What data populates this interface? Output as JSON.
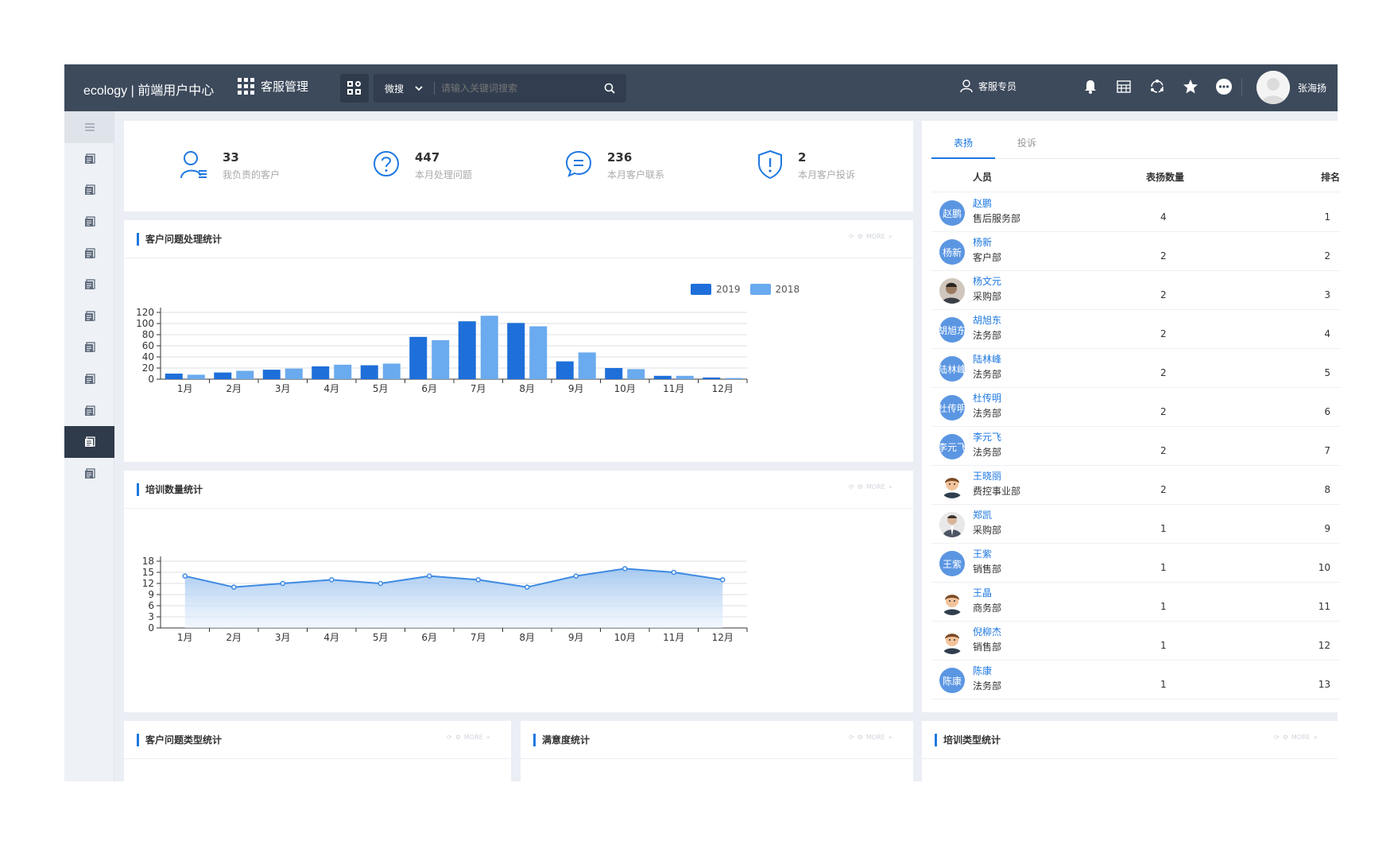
{
  "topbar": {
    "brand": "ecology | 前端用户中心",
    "module": "客服管理",
    "search_scope": "微搜",
    "search_placeholder": "请输入关键词搜索",
    "role": "客服专员",
    "user_name": "张海扬",
    "icons": [
      "bell-icon",
      "keyboard-icon",
      "refresh-circle-icon",
      "star-icon",
      "more-icon"
    ]
  },
  "sidebar": {
    "items": [
      "menu-icon",
      "doc-icon",
      "doc-icon",
      "doc-icon",
      "doc-icon",
      "doc-icon",
      "doc-icon",
      "doc-icon",
      "doc-icon",
      "doc-icon",
      "doc-icon",
      "doc-icon"
    ],
    "active_index": 10
  },
  "stats": [
    {
      "value": "33",
      "label": "我负责的客户",
      "icon": "user-list-icon"
    },
    {
      "value": "447",
      "label": "本月处理问题",
      "icon": "question-icon"
    },
    {
      "value": "236",
      "label": "本月客户联系",
      "icon": "chat-icon"
    },
    {
      "value": "2",
      "label": "本月客户投诉",
      "icon": "shield-alert-icon"
    }
  ],
  "panels": {
    "issue_stats_title": "客户问题处理统计",
    "training_title": "培训数量统计",
    "issue_type_title": "客户问题类型统计",
    "satisfaction_title": "满意度统计",
    "training_type_title": "培训类型统计",
    "more_label": "MORE"
  },
  "colors": {
    "accent": "#1e78e0",
    "series_2019": "#1e6fd9",
    "series_2018": "#6aaaee",
    "topbar": "#3d4a5c"
  },
  "chart_data": [
    {
      "type": "bar",
      "categories": [
        "1月",
        "2月",
        "3月",
        "4月",
        "5月",
        "6月",
        "7月",
        "8月",
        "9月",
        "10月",
        "11月",
        "12月"
      ],
      "series": [
        {
          "name": "2019",
          "values": [
            10,
            12,
            17,
            23,
            25,
            76,
            104,
            101,
            32,
            20,
            6,
            3
          ]
        },
        {
          "name": "2018",
          "values": [
            8,
            15,
            19,
            26,
            28,
            70,
            114,
            95,
            48,
            18,
            6,
            2
          ]
        }
      ],
      "yticks": [
        0,
        20,
        40,
        60,
        80,
        100,
        120
      ],
      "ylim": [
        0,
        120
      ],
      "legend": "top-right",
      "grid": true
    },
    {
      "type": "area",
      "categories": [
        "1月",
        "2月",
        "3月",
        "4月",
        "5月",
        "6月",
        "7月",
        "8月",
        "9月",
        "10月",
        "11月",
        "12月"
      ],
      "values": [
        14,
        11,
        12,
        13,
        12,
        14,
        13,
        11,
        14,
        16,
        15,
        13
      ],
      "yticks": [
        0,
        3,
        6,
        9,
        12,
        15,
        18
      ],
      "ylim": [
        0,
        18
      ],
      "grid": true
    }
  ],
  "ranking": {
    "tabs": [
      "表扬",
      "投诉"
    ],
    "active_tab": 0,
    "headers": {
      "person": "人员",
      "count": "表扬数量",
      "rank": "排名"
    },
    "rows": [
      {
        "name": "赵鹏",
        "dept": "售后服务部",
        "count": "4",
        "rank": "1",
        "avatar_text": "赵鹏",
        "avatar": "initials"
      },
      {
        "name": "杨新",
        "dept": "客户部",
        "count": "2",
        "rank": "2",
        "avatar_text": "杨新",
        "avatar": "initials"
      },
      {
        "name": "杨文元",
        "dept": "采购部",
        "count": "2",
        "rank": "3",
        "avatar_text": "",
        "avatar": "photo"
      },
      {
        "name": "胡旭东",
        "dept": "法务部",
        "count": "2",
        "rank": "4",
        "avatar_text": "胡旭东",
        "avatar": "initials"
      },
      {
        "name": "陆林峰",
        "dept": "法务部",
        "count": "2",
        "rank": "5",
        "avatar_text": "陆林峰",
        "avatar": "initials"
      },
      {
        "name": "杜传明",
        "dept": "法务部",
        "count": "2",
        "rank": "6",
        "avatar_text": "杜传明",
        "avatar": "initials"
      },
      {
        "name": "李元飞",
        "dept": "法务部",
        "count": "2",
        "rank": "7",
        "avatar_text": "李元飞",
        "avatar": "initials"
      },
      {
        "name": "王晓丽",
        "dept": "费控事业部",
        "count": "2",
        "rank": "8",
        "avatar_text": "",
        "avatar": "cartoon"
      },
      {
        "name": "郑凯",
        "dept": "采购部",
        "count": "1",
        "rank": "9",
        "avatar_text": "",
        "avatar": "suit"
      },
      {
        "name": "王紫",
        "dept": "销售部",
        "count": "1",
        "rank": "10",
        "avatar_text": "王紫",
        "avatar": "initials"
      },
      {
        "name": "王晶",
        "dept": "商务部",
        "count": "1",
        "rank": "11",
        "avatar_text": "",
        "avatar": "cartoon"
      },
      {
        "name": "倪柳杰",
        "dept": "销售部",
        "count": "1",
        "rank": "12",
        "avatar_text": "",
        "avatar": "cartoon"
      },
      {
        "name": "陈康",
        "dept": "法务部",
        "count": "1",
        "rank": "13",
        "avatar_text": "陈康",
        "avatar": "initials"
      }
    ]
  }
}
